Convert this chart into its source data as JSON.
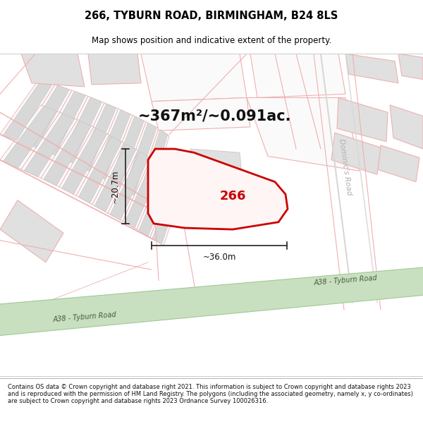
{
  "title_line1": "266, TYBURN ROAD, BIRMINGHAM, B24 8LS",
  "title_line2": "Map shows position and indicative extent of the property.",
  "area_text": "~367m²/~0.091ac.",
  "label_266": "266",
  "dim_height": "~20.7m",
  "dim_width": "~36.0m",
  "road_label_a38_1": "A38 - Tyburn Road",
  "road_label_a38_2": "A38 - Tyburn Road",
  "road_label_dominics": "Dominic's Road",
  "copyright_text": "Contains OS data © Crown copyright and database right 2021. This information is subject to Crown copyright and database rights 2023 and is reproduced with the permission of HM Land Registry. The polygons (including the associated geometry, namely x, y co-ordinates) are subject to Crown copyright and database rights 2023 Ordnance Survey 100026316.",
  "bg_color": "#ffffff",
  "plot_outline_color": "#f0b0b0",
  "building_fill": "#d8d8d8",
  "building_outline": "#c8c8c8",
  "highlight_color": "#cc0000",
  "road_green_fill": "#c8e0c0",
  "road_green_outline": "#a0c898",
  "dim_line_color": "#222222",
  "text_color": "#000000",
  "dominics_color": "#c0c0c0",
  "map_bg": "#ffffff"
}
